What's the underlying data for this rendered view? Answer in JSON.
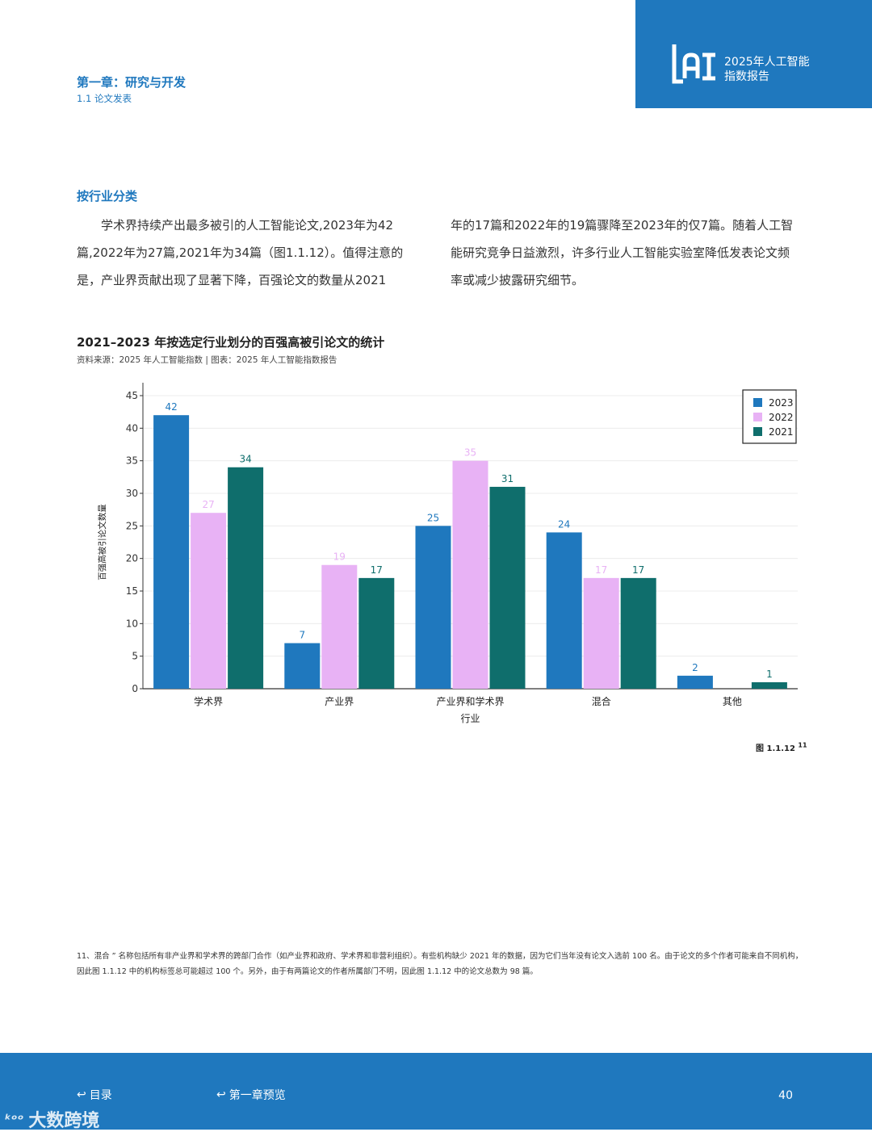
{
  "header": {
    "logo_text": "AI",
    "report_title_line1": "2025年人工智能",
    "report_title_line2": "指数报告"
  },
  "chapter": {
    "title": "第一章：研究与开发",
    "subsection": "1.1 论文发表"
  },
  "section": {
    "heading": "按行业分类",
    "paragraph_left": "学术界持续产出最多被引的人工智能论文,2023年为42篇,2022年为27篇,2021年为34篇（图1.1.12）。值得注意的是，产业界贡献出现了显著下降，百强论文的数量从2021",
    "paragraph_right": "年的17篇和2022年的19篇骤降至2023年的仅7篇。随着人工智能研究竞争日益激烈，许多行业人工智能实验室降低发表论文频率或减少披露研究细节。"
  },
  "chart_data": {
    "type": "bar",
    "title": "2021–2023 年按选定行业划分的百强高被引论文的统计",
    "source": "资料来源：2025 年人工智能指数 | 图表：2025 年人工智能指数报告",
    "xlabel": "行业",
    "ylabel": "百强高被引论文数量",
    "ylim": [
      0,
      45
    ],
    "yticks": [
      0,
      5,
      10,
      15,
      20,
      25,
      30,
      35,
      40,
      45
    ],
    "categories": [
      "学术界",
      "产业界",
      "产业界和学术界",
      "混合",
      "其他"
    ],
    "series": [
      {
        "name": "2023",
        "color": "#1f78be",
        "values": [
          42,
          7,
          25,
          24,
          2
        ]
      },
      {
        "name": "2022",
        "color": "#e8b2f5",
        "values": [
          27,
          19,
          35,
          17,
          null
        ]
      },
      {
        "name": "2021",
        "color": "#0f6e6c",
        "values": [
          34,
          17,
          31,
          17,
          1
        ]
      }
    ],
    "legend_position": "top-right",
    "grid": true
  },
  "figure_label": "图 1.1.12",
  "figure_footnote_ref": "11",
  "footnote": "11、混合 ” 名称包括所有非产业界和学术界的跨部门合作（如产业界和政府、学术界和非营利组织）。有些机构缺少 2021 年的数据，因为它们当年没有论文入选前 100 名。由于论文的多个作者可能来自不同机构，因此图 1.1.12 中的机构标签总可能超过 100 个。另外，由于有两篇论文的作者所属部门不明，因此图 1.1.12 中的论文总数为 98 篇。",
  "footer": {
    "nav_toc": "目录",
    "nav_chapter": "第一章预览",
    "page_number": "40",
    "watermark": "大数跨境"
  }
}
